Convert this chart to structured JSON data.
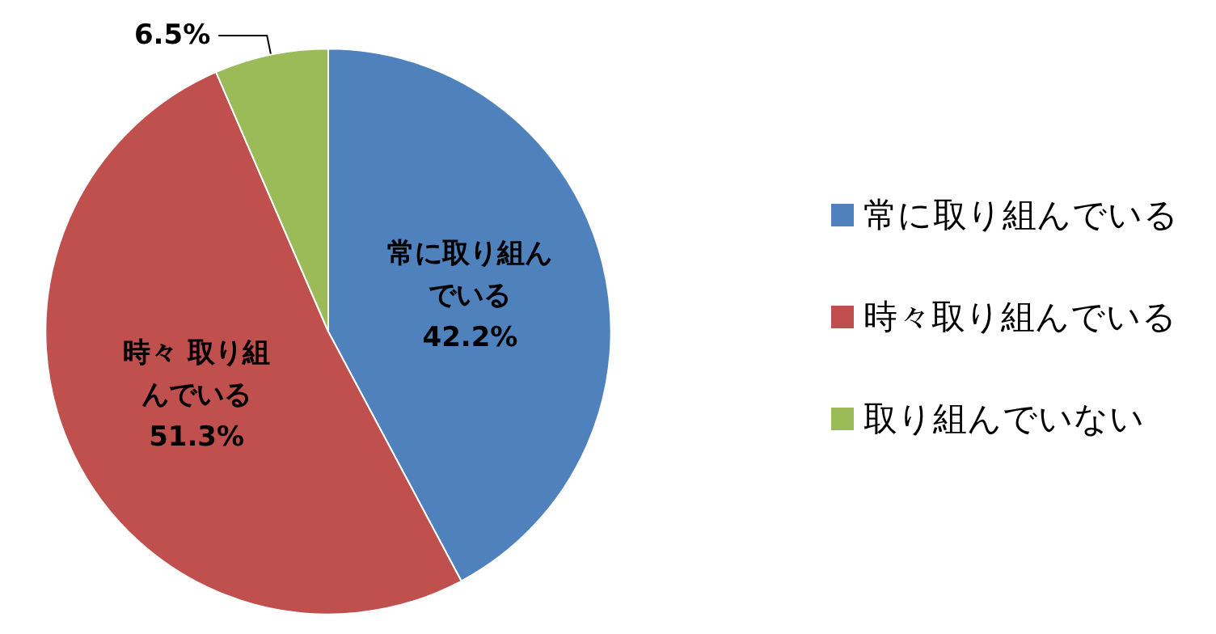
{
  "chart_data": {
    "type": "pie",
    "categories": [
      "常に取り組んでいる",
      "時々取り組んでいる",
      "取り組んでいない"
    ],
    "values": [
      42.2,
      51.3,
      6.5
    ],
    "colors": [
      "#4f81bd",
      "#c0504d",
      "#9bbb59"
    ],
    "value_labels": [
      "常に取り組んでいる42.2%",
      "時々 取り組んでいる51.3%",
      "6.5%"
    ],
    "legend": "right"
  }
}
